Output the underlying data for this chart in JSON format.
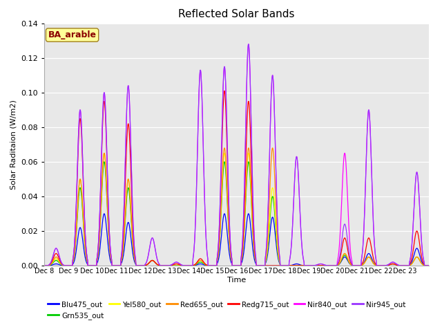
{
  "title": "Reflected Solar Bands",
  "xlabel": "Time",
  "ylabel": "Solar Raditaion (W/m2)",
  "ylim": [
    0,
    0.14
  ],
  "annotation": "BA_arable",
  "annotation_color": "#8B0000",
  "annotation_bg": "#FFFF99",
  "plot_bg_color": "#E8E8E8",
  "fig_bg_color": "#FFFFFF",
  "grid_color": "#FFFFFF",
  "legend_entries": [
    "Blu475_out",
    "Grn535_out",
    "Yel580_out",
    "Red655_out",
    "Redg715_out",
    "Nir840_out",
    "Nir945_out"
  ],
  "series_colors": {
    "Blu475_out": "#0000FF",
    "Grn535_out": "#00CC00",
    "Yel580_out": "#FFFF00",
    "Red655_out": "#FF8C00",
    "Redg715_out": "#FF0000",
    "Nir840_out": "#FF00FF",
    "Nir945_out": "#9933FF"
  },
  "xtick_labels": [
    "Dec 8",
    "Dec 9",
    "Dec 10",
    "Dec 11",
    "Dec 12",
    "Dec 13",
    "Dec 14",
    "Dec 15",
    "Dec 16",
    "Dec 17",
    "Dec 18",
    "Dec 19",
    "Dec 20",
    "Dec 21",
    "Dec 22",
    "Dec 23"
  ],
  "num_days": 16,
  "points_per_day": 96,
  "daily_peaks": {
    "Blu475_out": [
      0.001,
      0.022,
      0.03,
      0.025,
      0.003,
      0.0,
      0.001,
      0.03,
      0.03,
      0.028,
      0.001,
      0.0,
      0.005,
      0.007,
      0.001,
      0.01
    ],
    "Grn535_out": [
      0.003,
      0.045,
      0.06,
      0.045,
      0.003,
      0.0,
      0.002,
      0.06,
      0.06,
      0.04,
      0.0,
      0.0,
      0.006,
      0.005,
      0.001,
      0.005
    ],
    "Yel580_out": [
      0.004,
      0.05,
      0.065,
      0.05,
      0.003,
      0.0,
      0.003,
      0.065,
      0.065,
      0.045,
      0.0,
      0.0,
      0.007,
      0.005,
      0.001,
      0.005
    ],
    "Red655_out": [
      0.005,
      0.05,
      0.065,
      0.05,
      0.003,
      0.001,
      0.003,
      0.068,
      0.068,
      0.068,
      0.0,
      0.0,
      0.007,
      0.005,
      0.001,
      0.005
    ],
    "Redg715_out": [
      0.007,
      0.085,
      0.095,
      0.082,
      0.003,
      0.001,
      0.004,
      0.101,
      0.095,
      0.0,
      0.0,
      0.0,
      0.016,
      0.016,
      0.001,
      0.02
    ],
    "Nir840_out": [
      0.01,
      0.09,
      0.1,
      0.104,
      0.016,
      0.002,
      0.113,
      0.115,
      0.128,
      0.11,
      0.063,
      0.001,
      0.065,
      0.09,
      0.002,
      0.054
    ],
    "Nir945_out": [
      0.01,
      0.09,
      0.1,
      0.104,
      0.016,
      0.002,
      0.113,
      0.115,
      0.128,
      0.11,
      0.063,
      0.001,
      0.024,
      0.09,
      0.002,
      0.054
    ]
  }
}
